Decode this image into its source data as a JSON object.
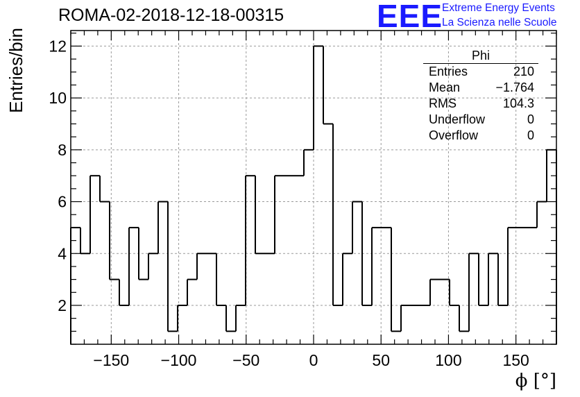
{
  "chart_data": {
    "type": "bar",
    "title": "ROMA-02-2018-12-18-00315",
    "xlabel": "ϕ [°]",
    "ylabel": "Entries/bin",
    "xlim": [
      -180,
      180
    ],
    "ylim": [
      0.5,
      12.6
    ],
    "bin_width": 7.2,
    "bin_start": -180,
    "values": [
      5,
      4,
      7,
      6,
      3,
      2,
      5,
      3,
      4,
      6,
      1,
      2,
      3,
      4,
      4,
      2,
      1,
      2,
      7,
      4,
      4,
      7,
      7,
      7,
      8,
      12,
      9,
      2,
      4,
      6,
      2,
      5,
      5,
      1,
      2,
      2,
      2,
      3,
      3,
      2,
      1,
      4,
      2,
      4,
      2,
      5,
      5,
      5,
      6,
      8
    ],
    "x_ticks": [
      "−150",
      "−100",
      "−50",
      "0",
      "50",
      "100",
      "150"
    ],
    "x_tick_values": [
      -150,
      -100,
      -50,
      0,
      50,
      100,
      150
    ],
    "y_ticks": [
      "2",
      "4",
      "6",
      "8",
      "10",
      "12"
    ],
    "y_tick_values": [
      2,
      4,
      6,
      8,
      10,
      12
    ],
    "grid": true,
    "line_color": "#000000",
    "grid_color": "#999999"
  },
  "stats": {
    "title": "Phi",
    "rows": [
      {
        "label": "Entries",
        "value": "210"
      },
      {
        "label": "Mean",
        "value": "−1.764"
      },
      {
        "label": "RMS",
        "value": "104.3"
      },
      {
        "label": "Underflow",
        "value": "0"
      },
      {
        "label": "Overflow",
        "value": "0"
      }
    ]
  },
  "logo": {
    "mark": "EEE",
    "line1": "Extreme Energy Events",
    "line2": "La Scienza nelle Scuole",
    "color": "#1a1aff"
  }
}
